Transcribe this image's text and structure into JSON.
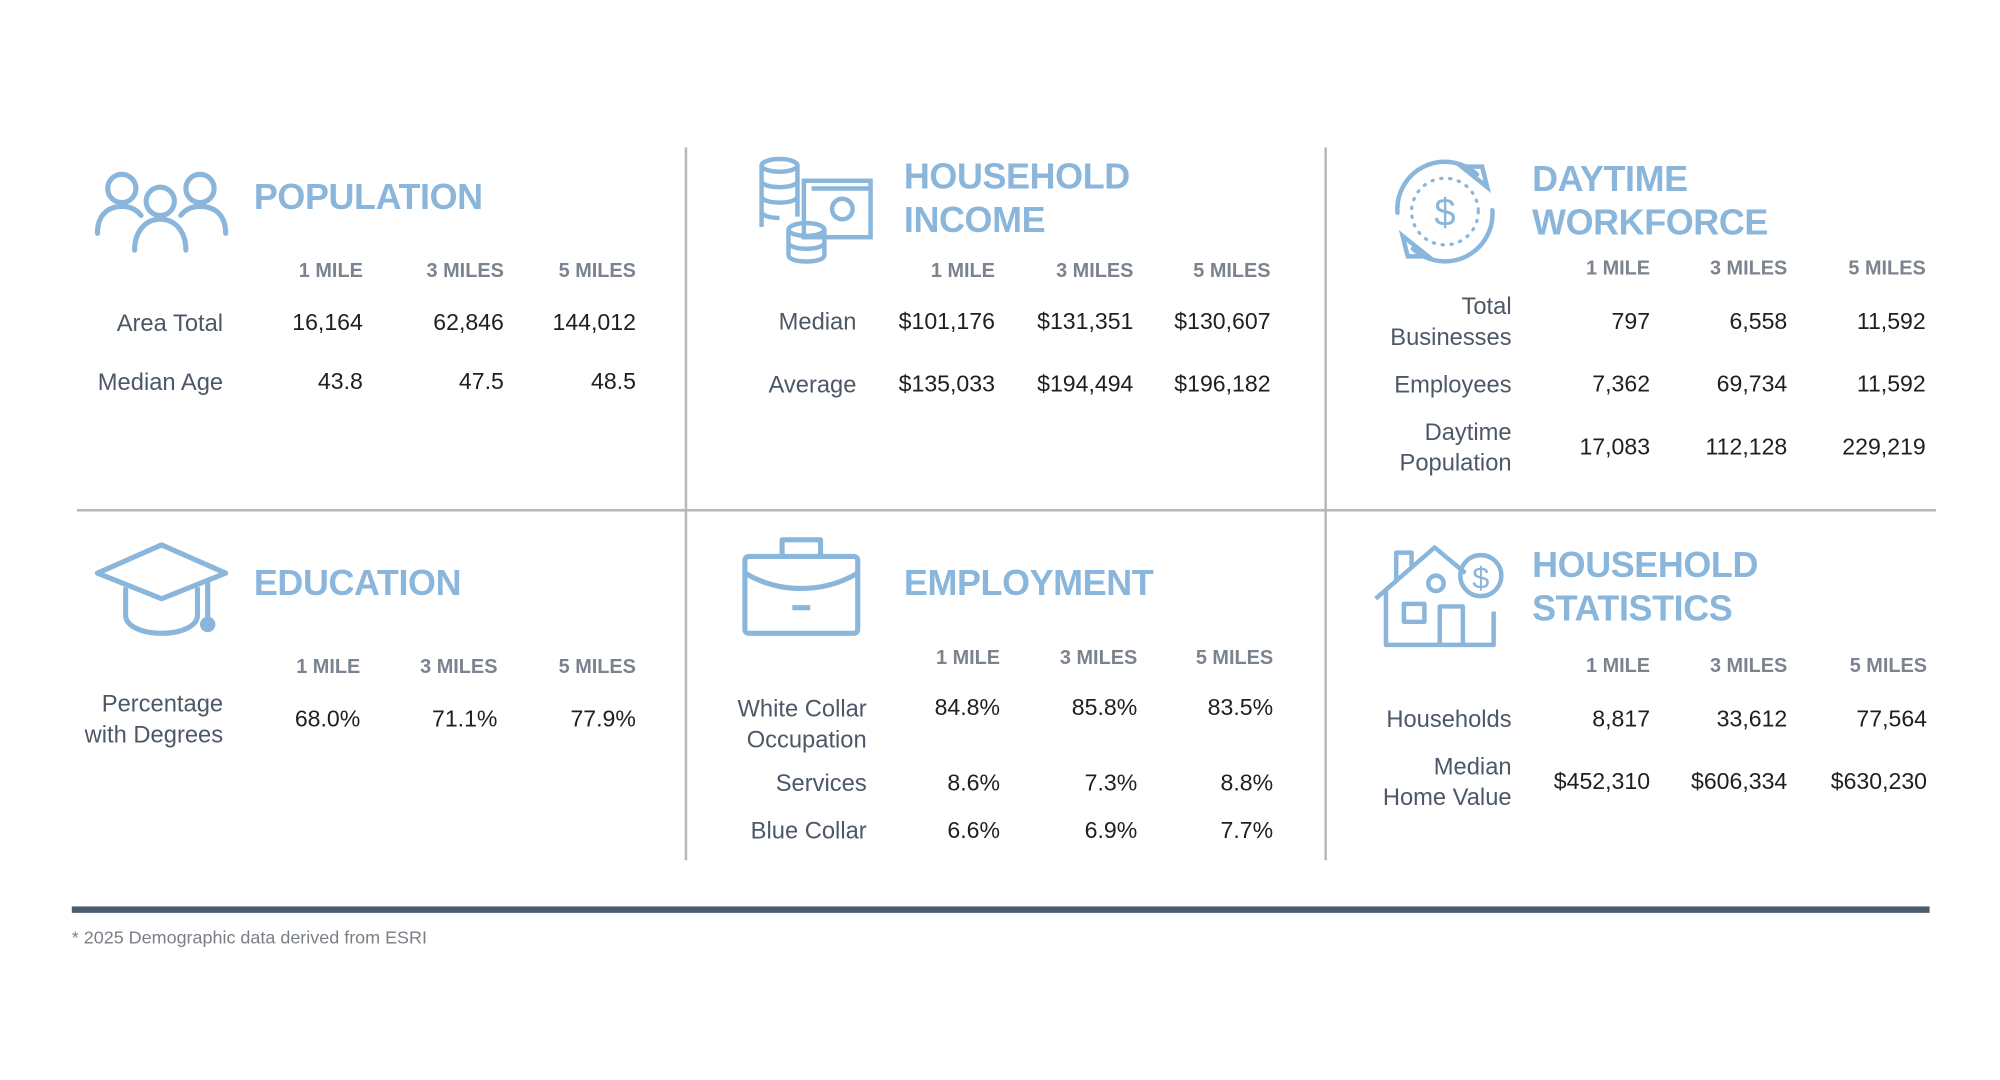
{
  "colors": {
    "accent": "#8ab6dc",
    "rule": "#4b5b6b"
  },
  "panels": [
    {
      "id": "population",
      "title": [
        "POPULATION"
      ],
      "icon": "people-group-icon",
      "columns": [
        "1 MILE",
        "3 MILES",
        "5 MILES"
      ],
      "rows": [
        {
          "label": [
            "Area Total"
          ],
          "values": [
            "16,164",
            "62,846",
            "144,012"
          ]
        },
        {
          "label": [
            "Median Age"
          ],
          "values": [
            "43.8",
            "47.5",
            "48.5"
          ]
        }
      ]
    },
    {
      "id": "household-income",
      "title": [
        "HOUSEHOLD",
        "INCOME"
      ],
      "icon": "money-coins-icon",
      "columns": [
        "1 MILE",
        "3 MILES",
        "5 MILES"
      ],
      "rows": [
        {
          "label": [
            "Median"
          ],
          "values": [
            "$101,176",
            "$131,351",
            "$130,607"
          ]
        },
        {
          "label": [
            "Average"
          ],
          "values": [
            "$135,033",
            "$194,494",
            "$196,182"
          ]
        }
      ]
    },
    {
      "id": "daytime-workforce",
      "title": [
        "DAYTIME",
        "WORKFORCE"
      ],
      "icon": "dollar-cycle-icon",
      "columns": [
        "1 MILE",
        "3 MILES",
        "5 MILES"
      ],
      "rows": [
        {
          "label": [
            "Total",
            "Businesses"
          ],
          "values": [
            "797",
            "6,558",
            "11,592"
          ]
        },
        {
          "label": [
            "Employees"
          ],
          "values": [
            "7,362",
            "69,734",
            "11,592"
          ]
        },
        {
          "label": [
            "Daytime",
            "Population"
          ],
          "values": [
            "17,083",
            "112,128",
            "229,219"
          ]
        }
      ]
    },
    {
      "id": "education",
      "title": [
        "EDUCATION"
      ],
      "icon": "graduation-cap-icon",
      "columns": [
        "1 MILE",
        "3 MILES",
        "5 MILES"
      ],
      "rows": [
        {
          "label": [
            "Percentage",
            "with Degrees"
          ],
          "values": [
            "68.0%",
            "71.1%",
            "77.9%"
          ]
        }
      ]
    },
    {
      "id": "employment",
      "title": [
        "EMPLOYMENT"
      ],
      "icon": "briefcase-icon",
      "columns": [
        "1 MILE",
        "3 MILES",
        "5 MILES"
      ],
      "rows": [
        {
          "label": [
            "White Collar",
            "Occupation"
          ],
          "values": [
            "84.8%",
            "85.8%",
            "83.5%"
          ]
        },
        {
          "label": [
            "Services"
          ],
          "values": [
            "8.6%",
            "7.3%",
            "8.8%"
          ]
        },
        {
          "label": [
            "Blue Collar"
          ],
          "values": [
            "6.6%",
            "6.9%",
            "7.7%"
          ]
        }
      ]
    },
    {
      "id": "household-statistics",
      "title": [
        "HOUSEHOLD",
        "STATISTICS"
      ],
      "icon": "house-dollar-icon",
      "columns": [
        "1 MILE",
        "3 MILES",
        "5 MILES"
      ],
      "rows": [
        {
          "label": [
            "Households"
          ],
          "values": [
            "8,817",
            "33,612",
            "77,564"
          ]
        },
        {
          "label": [
            "Median",
            "Home Value"
          ],
          "values": [
            "$452,310",
            "$606,334",
            "$630,230"
          ]
        }
      ]
    }
  ],
  "footnote": "* 2025 Demographic data derived from ESRI"
}
